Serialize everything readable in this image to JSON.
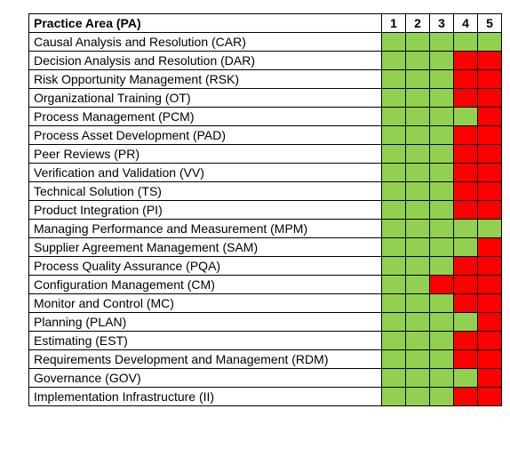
{
  "table": {
    "header": {
      "practice_area": "Practice Area (PA)",
      "levels": [
        "1",
        "2",
        "3",
        "4",
        "5"
      ]
    },
    "status_colors": {
      "green": "#92d050",
      "red": "#ff0000"
    },
    "rows": [
      {
        "name": "Causal Analysis and Resolution (CAR)",
        "levels": [
          "green",
          "green",
          "green",
          "green",
          "green"
        ]
      },
      {
        "name": "Decision Analysis and Resolution (DAR)",
        "levels": [
          "green",
          "green",
          "green",
          "red",
          "red"
        ]
      },
      {
        "name": "Risk Opportunity Management (RSK)",
        "levels": [
          "green",
          "green",
          "green",
          "red",
          "red"
        ]
      },
      {
        "name": "Organizational Training (OT)",
        "levels": [
          "green",
          "green",
          "green",
          "red",
          "red"
        ]
      },
      {
        "name": "Process Management (PCM)",
        "levels": [
          "green",
          "green",
          "green",
          "green",
          "red"
        ]
      },
      {
        "name": "Process Asset Development (PAD)",
        "levels": [
          "green",
          "green",
          "green",
          "red",
          "red"
        ]
      },
      {
        "name": "Peer Reviews (PR)",
        "levels": [
          "green",
          "green",
          "green",
          "red",
          "red"
        ]
      },
      {
        "name": "Verification and Validation (VV)",
        "levels": [
          "green",
          "green",
          "green",
          "red",
          "red"
        ]
      },
      {
        "name": "Technical Solution (TS)",
        "levels": [
          "green",
          "green",
          "green",
          "red",
          "red"
        ]
      },
      {
        "name": "Product Integration (PI)",
        "levels": [
          "green",
          "green",
          "green",
          "red",
          "red"
        ]
      },
      {
        "name": "Managing Performance and Measurement (MPM)",
        "levels": [
          "green",
          "green",
          "green",
          "green",
          "green"
        ]
      },
      {
        "name": "Supplier Agreement Management (SAM)",
        "levels": [
          "green",
          "green",
          "green",
          "green",
          "red"
        ]
      },
      {
        "name": "Process Quality Assurance (PQA)",
        "levels": [
          "green",
          "green",
          "green",
          "red",
          "red"
        ]
      },
      {
        "name": "Configuration Management (CM)",
        "levels": [
          "green",
          "green",
          "red",
          "red",
          "red"
        ]
      },
      {
        "name": "Monitor and Control (MC)",
        "levels": [
          "green",
          "green",
          "green",
          "red",
          "red"
        ]
      },
      {
        "name": "Planning (PLAN)",
        "levels": [
          "green",
          "green",
          "green",
          "green",
          "red"
        ]
      },
      {
        "name": "Estimating (EST)",
        "levels": [
          "green",
          "green",
          "green",
          "red",
          "red"
        ]
      },
      {
        "name": "Requirements Development and Management (RDM)",
        "levels": [
          "green",
          "green",
          "green",
          "red",
          "red"
        ]
      },
      {
        "name": "Governance (GOV)",
        "levels": [
          "green",
          "green",
          "green",
          "green",
          "red"
        ]
      },
      {
        "name": "Implementation Infrastructure (II)",
        "levels": [
          "green",
          "green",
          "green",
          "red",
          "red"
        ]
      }
    ]
  }
}
